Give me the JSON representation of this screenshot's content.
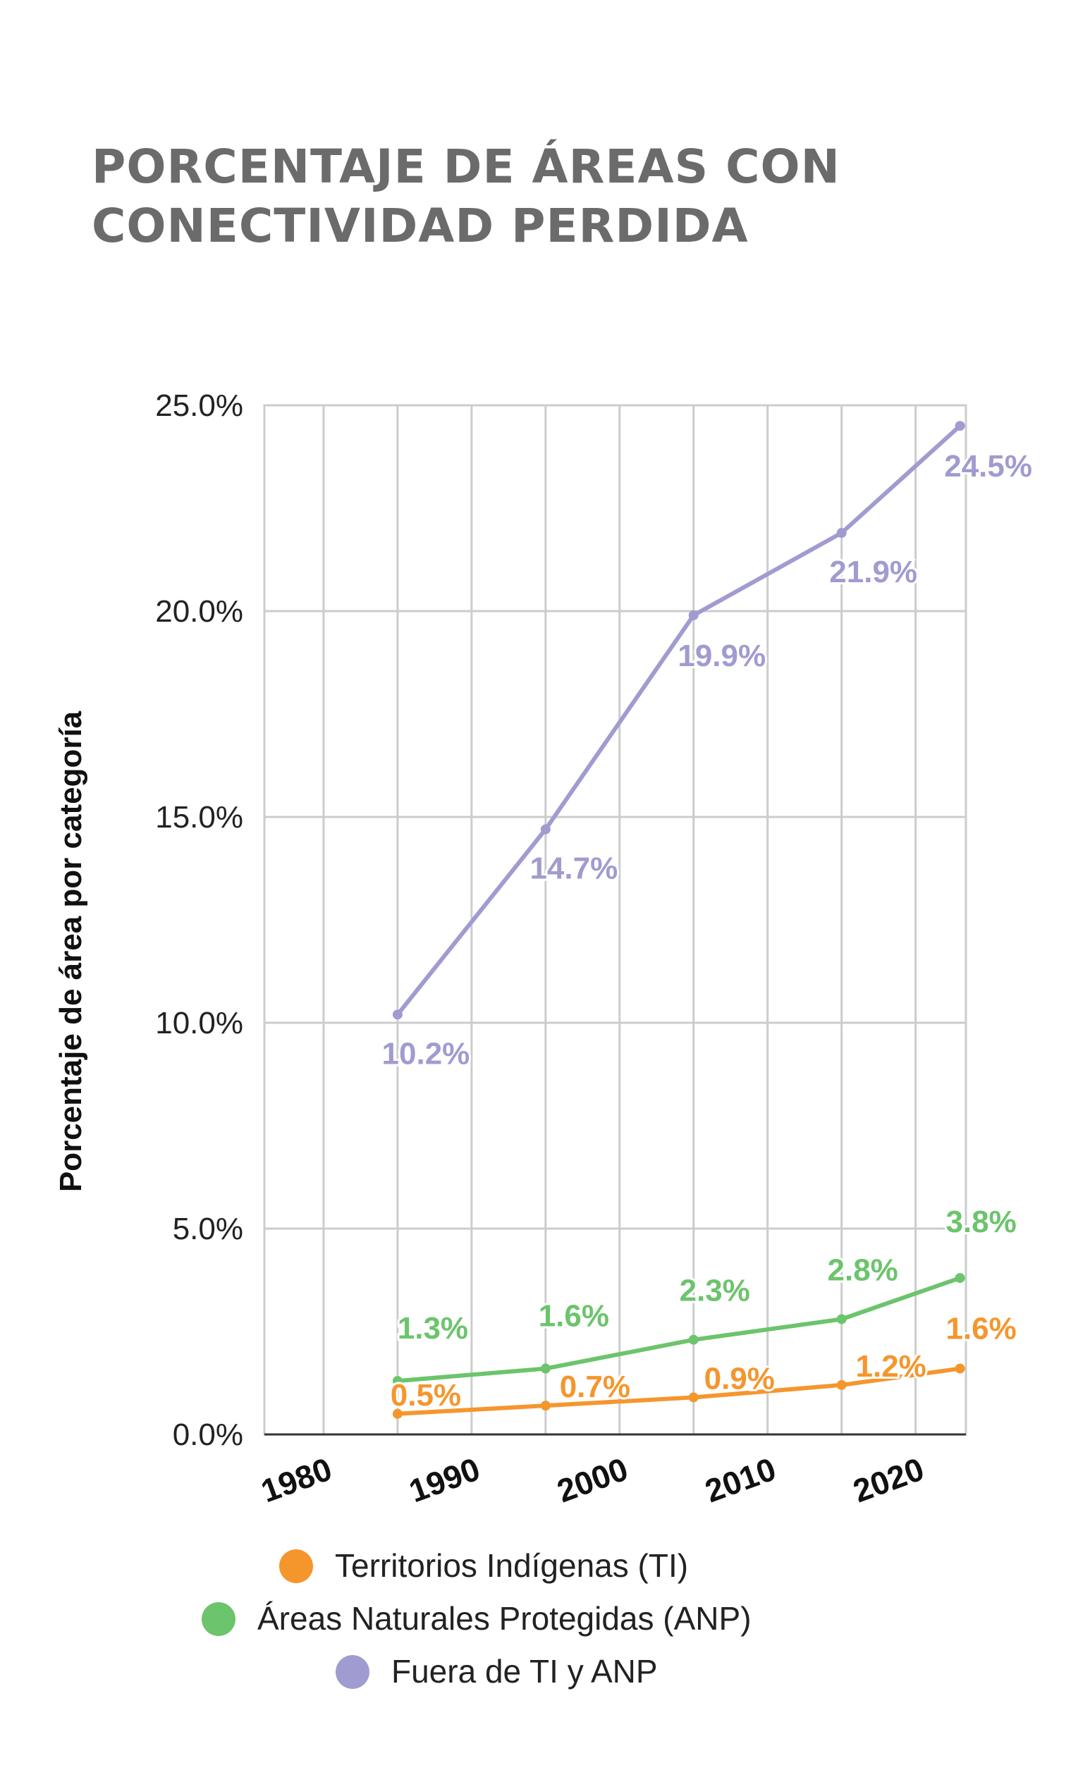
{
  "chart_data": {
    "type": "line",
    "title_lines": [
      "PORCENTAJE DE ÁREAS CON",
      "CONECTIVIDAD PERDIDA"
    ],
    "ylabel": "Porcentaje de área por categoría",
    "xlabel": "",
    "ylim": [
      0,
      25
    ],
    "xlim": [
      1976,
      2023.4
    ],
    "y_ticks": [
      0,
      5,
      10,
      15,
      20,
      25
    ],
    "y_tick_labels": [
      "0.0%",
      "5.0%",
      "10.0%",
      "15.0%",
      "20.0%",
      "25.0%"
    ],
    "x_ticks": [
      1980,
      1990,
      2000,
      2010,
      2020
    ],
    "x_tick_labels": [
      "1980",
      "1990",
      "2000",
      "2010",
      "2020"
    ],
    "grid": true,
    "legend_position": "bottom",
    "series": [
      {
        "name": "Territorios Indígenas (TI)",
        "color": "#f5962d",
        "x": [
          1985,
          1995,
          2005,
          2015,
          2023
        ],
        "values": [
          0.5,
          0.7,
          0.9,
          1.2,
          1.6
        ],
        "labels": [
          "0.5%",
          "0.7%",
          "0.9%",
          "1.2%",
          "1.6%"
        ]
      },
      {
        "name": "Áreas Naturales Protegidas (ANP)",
        "color": "#6cc46c",
        "x": [
          1985,
          1995,
          2005,
          2015,
          2023
        ],
        "values": [
          1.3,
          1.6,
          2.3,
          2.8,
          3.8
        ],
        "labels": [
          "1.3%",
          "1.6%",
          "2.3%",
          "2.8%",
          "3.8%"
        ]
      },
      {
        "name": "Fuera de TI y ANP",
        "color": "#a09bd0",
        "x": [
          1985,
          1995,
          2005,
          2015,
          2023
        ],
        "values": [
          10.2,
          14.7,
          19.9,
          21.9,
          24.5
        ],
        "labels": [
          "10.2%",
          "14.7%",
          "19.9%",
          "21.9%",
          "24.5%"
        ]
      }
    ]
  }
}
